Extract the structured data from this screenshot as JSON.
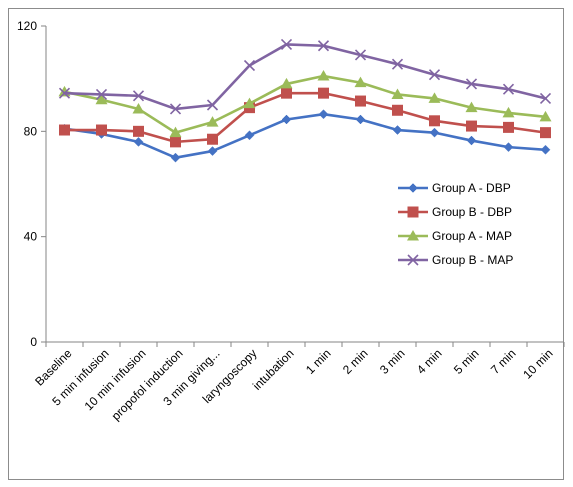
{
  "chart_data": {
    "type": "line",
    "title": "",
    "xlabel": "",
    "ylabel": "",
    "ylim": [
      0,
      120
    ],
    "yticks": [
      0,
      40,
      80,
      120
    ],
    "grid": false,
    "legend_position": "right",
    "categories": [
      "Baseline",
      "5 min infusion",
      "10 min infusion",
      "propofol induction",
      "3 min giving...",
      "laryngoscopy",
      "intubation",
      "1 min",
      "2 min",
      "3 min",
      "4 min",
      "5 min",
      "7 min",
      "10 min"
    ],
    "series": [
      {
        "name": "Group A - DBP",
        "color": "#4472C4",
        "marker": "diamond",
        "values": [
          81,
          79,
          76,
          70,
          72.5,
          78.5,
          84.5,
          86.5,
          84.5,
          80.5,
          79.5,
          76.5,
          74,
          73
        ]
      },
      {
        "name": "Group B - DBP",
        "color": "#C0504D",
        "marker": "square",
        "values": [
          80.5,
          80.5,
          80,
          76,
          77,
          89,
          94.5,
          94.5,
          91.5,
          88,
          84,
          82,
          81.5,
          79.5
        ]
      },
      {
        "name": "Group A - MAP",
        "color": "#9BBB59",
        "marker": "triangle",
        "values": [
          95,
          92,
          88.5,
          79.5,
          83.5,
          90.5,
          98,
          101,
          98.5,
          94,
          92.5,
          89,
          87,
          85.5
        ]
      },
      {
        "name": "Group B - MAP",
        "color": "#8064A2",
        "marker": "x",
        "values": [
          94.5,
          94,
          93.5,
          88.5,
          90,
          105,
          113,
          112.5,
          109,
          105.5,
          101.5,
          98,
          96,
          92.5
        ]
      }
    ]
  }
}
